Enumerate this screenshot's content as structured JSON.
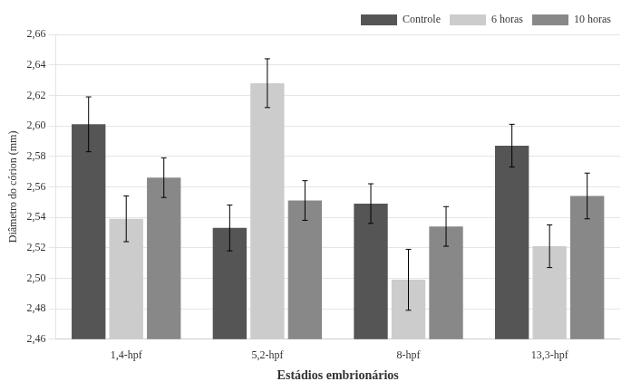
{
  "chart_data": {
    "type": "bar",
    "xlabel": "Estádios embrionários",
    "ylabel": "Diâmetro do córion (mm)",
    "categories": [
      "1,4-hpf",
      "5,2-hpf",
      "8-hpf",
      "13,3-hpf"
    ],
    "series": [
      {
        "name": "Controle",
        "color": "#555555",
        "values": [
          2.601,
          2.533,
          2.549,
          2.587
        ],
        "errors": [
          0.018,
          0.015,
          0.013,
          0.014
        ]
      },
      {
        "name": "6 horas",
        "color": "#cccccc",
        "values": [
          2.539,
          2.628,
          2.499,
          2.521
        ],
        "errors": [
          0.015,
          0.016,
          0.02,
          0.014
        ]
      },
      {
        "name": "10 horas",
        "color": "#888888",
        "values": [
          2.566,
          2.551,
          2.534,
          2.554
        ],
        "errors": [
          0.013,
          0.013,
          0.013,
          0.015
        ]
      }
    ],
    "ylim": [
      2.46,
      2.66
    ],
    "yticks": [
      {
        "value": 2.46,
        "label": "2,46"
      },
      {
        "value": 2.48,
        "label": "2,48"
      },
      {
        "value": 2.5,
        "label": "2,50"
      },
      {
        "value": 2.52,
        "label": "2,52"
      },
      {
        "value": 2.54,
        "label": "2,54"
      },
      {
        "value": 2.56,
        "label": "2,56"
      },
      {
        "value": 2.58,
        "label": "2,58"
      },
      {
        "value": 2.6,
        "label": "2,60"
      },
      {
        "value": 2.62,
        "label": "2,62"
      },
      {
        "value": 2.64,
        "label": "2,64"
      },
      {
        "value": 2.66,
        "label": "2,66"
      }
    ],
    "grid": true,
    "legend": "upper right"
  }
}
